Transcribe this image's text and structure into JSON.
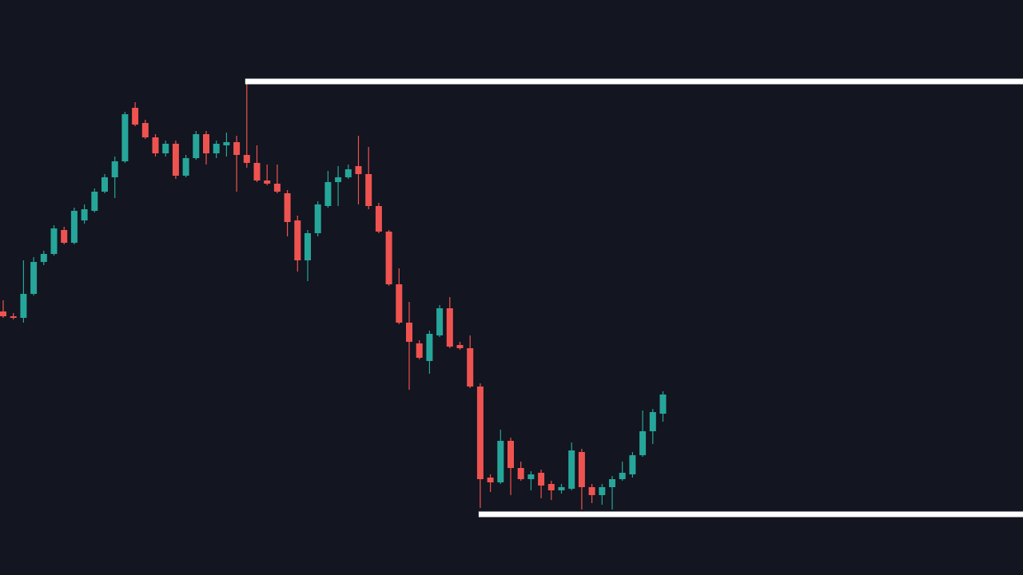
{
  "chart_data": {
    "type": "candlestick",
    "ylim": [
      0,
      720
    ],
    "up_color": "#26a69a",
    "down_color": "#ef5350",
    "open": [
      330,
      324,
      322,
      352,
      392,
      402,
      432,
      416,
      444,
      456,
      480,
      498,
      518,
      585,
      566,
      548,
      528,
      540,
      500,
      522,
      552,
      528,
      538,
      542,
      526,
      516,
      494,
      490,
      478,
      444,
      394,
      428,
      462,
      492,
      498,
      512,
      502,
      462,
      430,
      364,
      316,
      290,
      268,
      300,
      334,
      288,
      284,
      236,
      122,
      116,
      168,
      134,
      120,
      128,
      114,
      106,
      108,
      154,
      110,
      100,
      110,
      120,
      126,
      150,
      180,
      202
    ],
    "high": [
      344,
      328,
      394,
      398,
      406,
      438,
      436,
      460,
      464,
      484,
      502,
      524,
      580,
      592,
      570,
      552,
      544,
      544,
      526,
      556,
      556,
      544,
      554,
      550,
      616,
      538,
      514,
      514,
      482,
      450,
      432,
      468,
      506,
      512,
      514,
      550,
      536,
      466,
      432,
      384,
      342,
      294,
      306,
      338,
      348,
      292,
      300,
      240,
      126,
      182,
      172,
      142,
      130,
      132,
      118,
      114,
      166,
      158,
      114,
      114,
      124,
      142,
      154,
      206,
      208,
      230
    ],
    "low": [
      322,
      320,
      316,
      350,
      388,
      400,
      414,
      414,
      440,
      454,
      478,
      472,
      516,
      562,
      546,
      524,
      524,
      496,
      498,
      520,
      514,
      522,
      524,
      480,
      510,
      492,
      488,
      478,
      424,
      380,
      368,
      424,
      460,
      462,
      496,
      464,
      458,
      428,
      362,
      314,
      232,
      270,
      252,
      298,
      284,
      282,
      234,
      84,
      104,
      114,
      100,
      118,
      106,
      96,
      94,
      102,
      106,
      82,
      90,
      88,
      82,
      118,
      122,
      148,
      164,
      192
    ],
    "close": [
      324,
      322,
      352,
      392,
      402,
      434,
      416,
      456,
      458,
      480,
      498,
      518,
      577,
      564,
      548,
      528,
      540,
      500,
      522,
      552,
      528,
      540,
      542,
      526,
      516,
      494,
      490,
      480,
      442,
      394,
      428,
      464,
      492,
      498,
      508,
      502,
      462,
      430,
      364,
      316,
      292,
      272,
      302,
      334,
      286,
      284,
      236,
      120,
      116,
      168,
      134,
      120,
      126,
      112,
      106,
      110,
      156,
      110,
      100,
      110,
      120,
      128,
      150,
      180,
      204,
      226
    ],
    "levels": [
      {
        "value": 618,
        "start": 24,
        "color": "#ffffff"
      },
      {
        "value": 76,
        "start": 47,
        "color": "#ffffff"
      }
    ]
  }
}
